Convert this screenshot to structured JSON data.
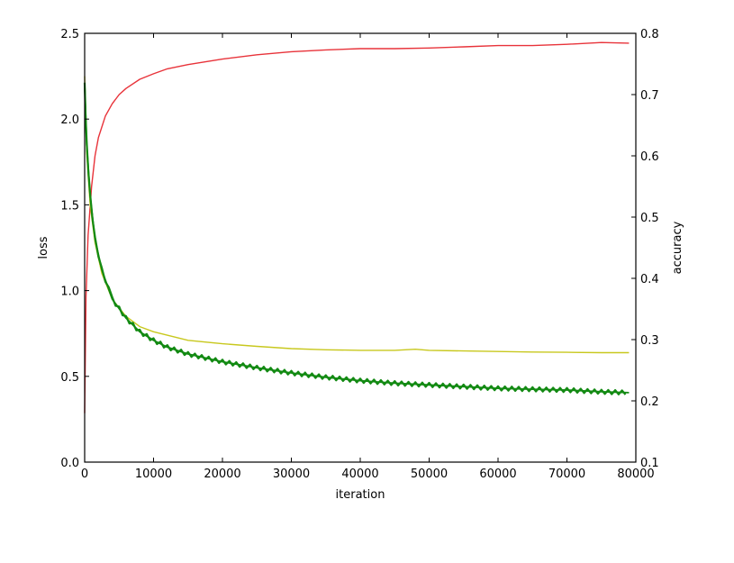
{
  "chart_data": {
    "type": "line",
    "title": "",
    "xlabel": "iteration",
    "ylabel": "loss",
    "y2label": "accuracy",
    "xlim": [
      0,
      80000
    ],
    "ylim": [
      0,
      2.5
    ],
    "y2lim": [
      0.1,
      0.8
    ],
    "xticks": [
      0,
      10000,
      20000,
      30000,
      40000,
      50000,
      60000,
      70000,
      80000
    ],
    "yticks": [
      0.0,
      0.5,
      1.0,
      1.5,
      2.0,
      2.5
    ],
    "y2ticks": [
      0.1,
      0.2,
      0.3,
      0.4,
      0.5,
      0.6,
      0.7,
      0.8
    ],
    "xtick_labels": [
      "0",
      "10000",
      "20000",
      "30000",
      "40000",
      "50000",
      "60000",
      "70000",
      "80000"
    ],
    "ytick_labels": [
      "0.0",
      "0.5",
      "1.0",
      "1.5",
      "2.0",
      "2.5"
    ],
    "y2tick_labels": [
      "0.1",
      "0.2",
      "0.3",
      "0.4",
      "0.5",
      "0.6",
      "0.7",
      "0.8"
    ],
    "grid": false,
    "series": [
      {
        "axis": "y2",
        "color": "#e8333a",
        "x": [
          0,
          200,
          500,
          1000,
          1500,
          2000,
          3000,
          4000,
          5000,
          6000,
          8000,
          10000,
          12000,
          15000,
          20000,
          25000,
          30000,
          35000,
          40000,
          45000,
          50000,
          55000,
          60000,
          65000,
          70000,
          75000,
          79000
        ],
        "values": [
          0.18,
          0.37,
          0.47,
          0.55,
          0.6,
          0.63,
          0.665,
          0.685,
          0.7,
          0.71,
          0.725,
          0.734,
          0.742,
          0.749,
          0.758,
          0.765,
          0.77,
          0.773,
          0.775,
          0.775,
          0.776,
          0.778,
          0.78,
          0.78,
          0.782,
          0.785,
          0.784
        ]
      },
      {
        "axis": "y",
        "color": "#c8c81e",
        "x": [
          0,
          300,
          800,
          1500,
          2500,
          4000,
          6000,
          8000,
          10000,
          15000,
          20000,
          25000,
          30000,
          35000,
          40000,
          45000,
          48000,
          50000,
          55000,
          60000,
          65000,
          70000,
          75000,
          79000
        ],
        "values": [
          2.25,
          1.8,
          1.5,
          1.28,
          1.1,
          0.95,
          0.85,
          0.79,
          0.76,
          0.71,
          0.69,
          0.675,
          0.662,
          0.655,
          0.652,
          0.652,
          0.658,
          0.652,
          0.648,
          0.645,
          0.642,
          0.64,
          0.638,
          0.638
        ]
      },
      {
        "axis": "y",
        "color": "#138a13",
        "x": [
          0,
          300,
          800,
          1500,
          2500,
          4000,
          6000,
          8000,
          10000,
          12000,
          15000,
          20000,
          25000,
          30000,
          35000,
          40000,
          45000,
          50000,
          55000,
          60000,
          65000,
          70000,
          75000,
          79000
        ],
        "values": [
          2.2,
          1.85,
          1.55,
          1.3,
          1.12,
          0.95,
          0.84,
          0.76,
          0.71,
          0.67,
          0.63,
          0.585,
          0.55,
          0.52,
          0.495,
          0.475,
          0.46,
          0.45,
          0.44,
          0.43,
          0.425,
          0.42,
          0.41,
          0.405
        ]
      }
    ]
  }
}
